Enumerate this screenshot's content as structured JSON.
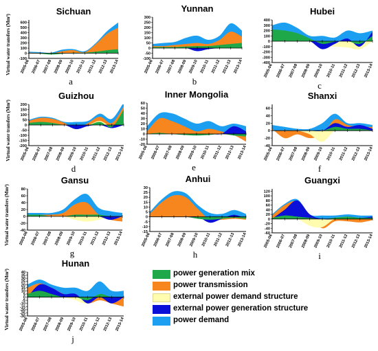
{
  "figure": {
    "ylabel": "Virtual water transfers (Mm³)",
    "x_ticks": [
      "2005-06",
      "2006-07",
      "2007-08",
      "2008-09",
      "2009-10",
      "2010-11",
      "2011-12",
      "2012-13",
      "2013-14"
    ],
    "legend": [
      {
        "name": "power generation mix",
        "color": "#1fa84a"
      },
      {
        "name": "power transmission",
        "color": "#f7861e"
      },
      {
        "name": "external power demand structure",
        "color": "#fffcb0"
      },
      {
        "name": "external power generation structure",
        "color": "#0a10d8"
      },
      {
        "name": "power demand",
        "color": "#1c9ff0"
      }
    ]
  },
  "chart_data": [
    {
      "type": "area",
      "title": "Sichuan",
      "panel_letter": "a",
      "yticks": [
        -100,
        0,
        100,
        200,
        300,
        400,
        500,
        600
      ],
      "ylim": [
        -100,
        650
      ],
      "series": [
        {
          "name": "power generation mix",
          "values": [
            0,
            -10,
            -25,
            -10,
            10,
            10,
            30,
            60,
            80
          ]
        },
        {
          "name": "power transmission",
          "values": [
            10,
            5,
            -5,
            40,
            60,
            20,
            180,
            380,
            500
          ]
        },
        {
          "name": "external power demand structure",
          "values": [
            0,
            0,
            0,
            0,
            0,
            0,
            0,
            0,
            0
          ]
        },
        {
          "name": "external power generation structure",
          "values": [
            0,
            0,
            0,
            0,
            0,
            0,
            0,
            0,
            0
          ]
        },
        {
          "name": "power demand",
          "values": [
            30,
            20,
            10,
            70,
            80,
            40,
            200,
            430,
            600
          ]
        }
      ]
    },
    {
      "type": "area",
      "title": "Yunnan",
      "panel_letter": "b",
      "yticks": [
        -100,
        -50,
        0,
        50,
        100,
        150,
        200,
        250,
        300
      ],
      "ylim": [
        -100,
        300
      ],
      "series": [
        {
          "name": "power generation mix",
          "values": [
            10,
            10,
            10,
            15,
            20,
            20,
            30,
            40,
            50
          ]
        },
        {
          "name": "power transmission",
          "values": [
            20,
            20,
            30,
            40,
            50,
            40,
            80,
            160,
            110
          ]
        },
        {
          "name": "external power demand structure",
          "values": [
            0,
            0,
            0,
            0,
            0,
            0,
            0,
            0,
            0
          ]
        },
        {
          "name": "external power generation structure",
          "values": [
            0,
            0,
            0,
            0,
            -30,
            -10,
            0,
            0,
            0
          ]
        },
        {
          "name": "power demand",
          "values": [
            40,
            50,
            60,
            100,
            120,
            80,
            120,
            240,
            170
          ]
        }
      ]
    },
    {
      "type": "area",
      "title": "Hubei",
      "panel_letter": "c",
      "yticks": [
        -400,
        -300,
        -200,
        -100,
        0,
        100,
        200,
        300,
        400
      ],
      "ylim": [
        -400,
        400
      ],
      "series": [
        {
          "name": "power generation mix",
          "values": [
            220,
            200,
            150,
            50,
            -50,
            -10,
            0,
            -50,
            100
          ]
        },
        {
          "name": "power transmission",
          "values": [
            120,
            130,
            100,
            0,
            -100,
            -50,
            -100,
            -100,
            150
          ]
        },
        {
          "name": "external power demand structure",
          "values": [
            0,
            0,
            0,
            0,
            -100,
            -100,
            -120,
            -150,
            0
          ]
        },
        {
          "name": "external power generation structure",
          "values": [
            0,
            0,
            0,
            0,
            -150,
            -50,
            50,
            -100,
            180
          ]
        },
        {
          "name": "power demand",
          "values": [
            300,
            350,
            250,
            100,
            100,
            70,
            200,
            150,
            200
          ]
        }
      ]
    },
    {
      "type": "area",
      "title": "Guizhou",
      "panel_letter": "d",
      "yticks": [
        -200,
        -150,
        -100,
        -50,
        0,
        50,
        100,
        150,
        200
      ],
      "ylim": [
        -200,
        200
      ],
      "series": [
        {
          "name": "power generation mix",
          "values": [
            20,
            30,
            20,
            0,
            0,
            0,
            30,
            -20,
            150
          ]
        },
        {
          "name": "power transmission",
          "values": [
            40,
            70,
            60,
            20,
            -40,
            20,
            80,
            20,
            180
          ]
        },
        {
          "name": "external power demand structure",
          "values": [
            0,
            0,
            0,
            0,
            -20,
            0,
            40,
            -20,
            0
          ]
        },
        {
          "name": "external power generation structure",
          "values": [
            0,
            0,
            0,
            0,
            -40,
            -10,
            0,
            -30,
            0
          ]
        },
        {
          "name": "power demand",
          "values": [
            50,
            80,
            70,
            30,
            30,
            40,
            110,
            60,
            220
          ]
        }
      ]
    },
    {
      "type": "area",
      "title": "Inner Mongolia",
      "panel_letter": "e",
      "yticks": [
        -20,
        -10,
        0,
        10,
        20,
        30,
        40,
        50,
        60
      ],
      "ylim": [
        -20,
        60
      ],
      "series": [
        {
          "name": "power generation mix",
          "values": [
            0,
            2,
            0,
            -2,
            -3,
            -2,
            0,
            -3,
            -5
          ]
        },
        {
          "name": "power transmission",
          "values": [
            5,
            30,
            25,
            15,
            5,
            10,
            5,
            -2,
            -15
          ]
        },
        {
          "name": "external power demand structure",
          "values": [
            0,
            0,
            0,
            0,
            0,
            0,
            0,
            0,
            0
          ]
        },
        {
          "name": "external power generation structure",
          "values": [
            0,
            0,
            0,
            0,
            -2,
            0,
            0,
            15,
            5
          ]
        },
        {
          "name": "power demand",
          "values": [
            15,
            40,
            40,
            30,
            20,
            25,
            15,
            20,
            15
          ]
        }
      ]
    },
    {
      "type": "area",
      "title": "Shanxi",
      "panel_letter": "f",
      "yticks": [
        -40,
        -20,
        0,
        20,
        40,
        60
      ],
      "ylim": [
        -40,
        70
      ],
      "series": [
        {
          "name": "power generation mix",
          "values": [
            0,
            0,
            0,
            0,
            0,
            10,
            5,
            5,
            0
          ]
        },
        {
          "name": "power transmission",
          "values": [
            5,
            -20,
            -10,
            -20,
            -10,
            30,
            15,
            10,
            10
          ]
        },
        {
          "name": "external power demand structure",
          "values": [
            0,
            0,
            0,
            -10,
            -30,
            0,
            0,
            0,
            0
          ]
        },
        {
          "name": "external power generation structure",
          "values": [
            0,
            0,
            0,
            0,
            0,
            20,
            10,
            15,
            5
          ]
        },
        {
          "name": "power demand",
          "values": [
            15,
            10,
            5,
            5,
            20,
            45,
            20,
            20,
            15
          ]
        }
      ]
    },
    {
      "type": "area",
      "title": "Gansu",
      "panel_letter": "g",
      "yticks": [
        -40,
        -20,
        0,
        20,
        40,
        60,
        80
      ],
      "ylim": [
        -40,
        80
      ],
      "series": [
        {
          "name": "power generation mix",
          "values": [
            5,
            5,
            0,
            0,
            5,
            5,
            5,
            0,
            0
          ]
        },
        {
          "name": "power transmission",
          "values": [
            5,
            5,
            5,
            10,
            35,
            40,
            5,
            -10,
            -15
          ]
        },
        {
          "name": "external power demand structure",
          "values": [
            0,
            0,
            0,
            0,
            -10,
            -15,
            -10,
            0,
            0
          ]
        },
        {
          "name": "external power generation structure",
          "values": [
            0,
            0,
            0,
            0,
            0,
            0,
            0,
            -10,
            0
          ]
        },
        {
          "name": "power demand",
          "values": [
            10,
            10,
            10,
            20,
            50,
            65,
            25,
            15,
            10
          ]
        }
      ]
    },
    {
      "type": "area",
      "title": "Anhui",
      "panel_letter": "h",
      "yticks": [
        -15,
        -10,
        -5,
        0,
        5,
        10,
        15,
        20,
        25,
        30
      ],
      "ylim": [
        -15,
        30
      ],
      "series": [
        {
          "name": "power generation mix",
          "values": [
            0,
            0,
            0,
            0,
            -2,
            -3,
            -2,
            -1,
            -2
          ]
        },
        {
          "name": "power transmission",
          "values": [
            3,
            15,
            22,
            20,
            8,
            -3,
            -3,
            -2,
            -3
          ]
        },
        {
          "name": "external power demand structure",
          "values": [
            0,
            0,
            0,
            0,
            0,
            0,
            0,
            0,
            0
          ]
        },
        {
          "name": "external power generation structure",
          "values": [
            0,
            0,
            0,
            0,
            0,
            -6,
            -2,
            2,
            -2
          ]
        },
        {
          "name": "power demand",
          "values": [
            5,
            18,
            26,
            24,
            12,
            4,
            3,
            7,
            3
          ]
        }
      ]
    },
    {
      "type": "area",
      "title": "Guangxi",
      "panel_letter": "i",
      "yticks": [
        -60,
        -40,
        -20,
        0,
        20,
        40,
        60,
        80,
        100,
        120
      ],
      "ylim": [
        -60,
        130
      ],
      "series": [
        {
          "name": "power generation mix",
          "values": [
            5,
            15,
            10,
            5,
            0,
            5,
            10,
            5,
            5
          ]
        },
        {
          "name": "power transmission",
          "values": [
            15,
            60,
            75,
            10,
            -40,
            -10,
            -10,
            -15,
            -5
          ]
        },
        {
          "name": "external power demand structure",
          "values": [
            0,
            0,
            0,
            -30,
            -35,
            0,
            0,
            0,
            0
          ]
        },
        {
          "name": "external power generation structure",
          "values": [
            0,
            40,
            80,
            20,
            0,
            0,
            10,
            5,
            10
          ]
        },
        {
          "name": "power demand",
          "values": [
            20,
            65,
            85,
            20,
            15,
            15,
            20,
            15,
            15
          ]
        }
      ]
    },
    {
      "type": "area",
      "title": "Hunan",
      "panel_letter": "j",
      "yticks": [
        -30,
        -25,
        -20,
        -15,
        -10,
        -5,
        0,
        5,
        10,
        15,
        20,
        25,
        30,
        35,
        40
      ],
      "ylim": [
        -30,
        40
      ],
      "series": [
        {
          "name": "power generation mix",
          "values": [
            5,
            10,
            5,
            0,
            0,
            -5,
            5,
            0,
            0
          ]
        },
        {
          "name": "power transmission",
          "values": [
            15,
            22,
            15,
            5,
            0,
            -10,
            -5,
            -10,
            -15
          ]
        },
        {
          "name": "external power demand structure",
          "values": [
            0,
            5,
            5,
            0,
            -5,
            -10,
            5,
            -5,
            0
          ]
        },
        {
          "name": "external power generation structure",
          "values": [
            0,
            20,
            15,
            5,
            5,
            -10,
            0,
            -10,
            0
          ]
        },
        {
          "name": "power demand",
          "values": [
            20,
            28,
            20,
            15,
            15,
            10,
            25,
            10,
            10
          ]
        }
      ]
    }
  ]
}
